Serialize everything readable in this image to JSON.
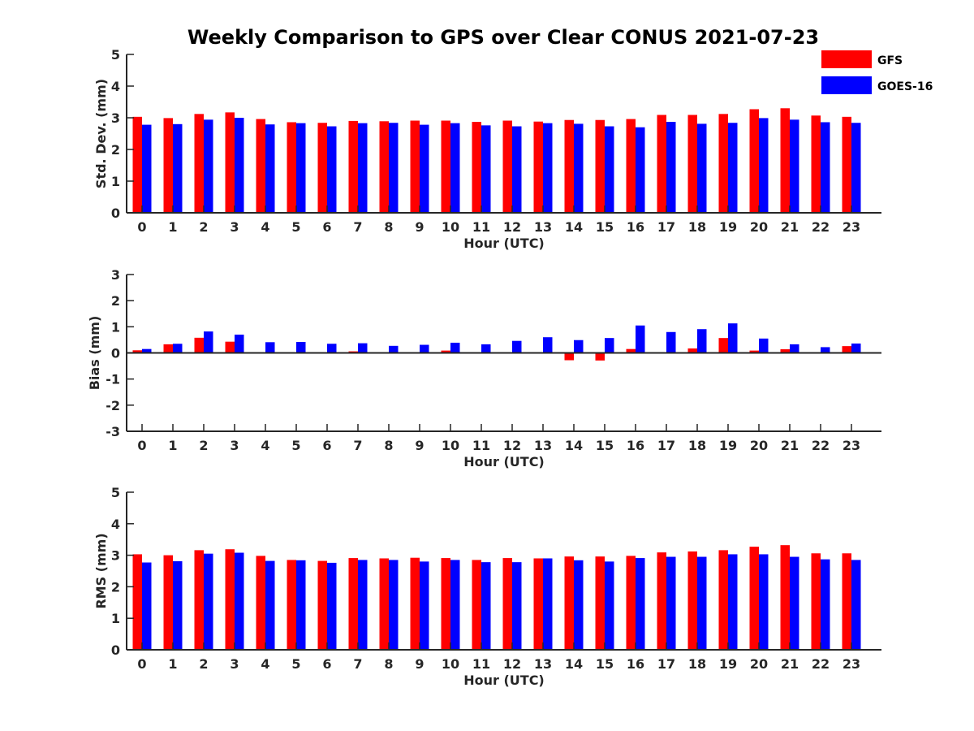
{
  "figure": {
    "title": "Weekly Comparison to GPS over Clear CONUS 2021-07-23"
  },
  "colors": {
    "GFS": "#ff0000",
    "GOES-16": "#0000ff",
    "axis": "#262626"
  },
  "chart_data": [
    {
      "type": "bar",
      "panel": "std-dev",
      "title": "Weekly Comparison to GPS over Clear CONUS 2021-07-23",
      "xlabel": "Hour (UTC)",
      "ylabel": "Std. Dev. (mm)",
      "ylim": [
        0,
        5
      ],
      "yticks": [
        0,
        1,
        2,
        3,
        4,
        5
      ],
      "categories": [
        "0",
        "1",
        "2",
        "3",
        "4",
        "5",
        "6",
        "7",
        "8",
        "9",
        "10",
        "11",
        "12",
        "13",
        "14",
        "15",
        "16",
        "17",
        "18",
        "19",
        "20",
        "21",
        "22",
        "23"
      ],
      "legend": "top-right",
      "series": [
        {
          "name": "GFS",
          "values": [
            3.03,
            2.99,
            3.12,
            3.17,
            2.96,
            2.86,
            2.84,
            2.9,
            2.89,
            2.91,
            2.91,
            2.87,
            2.91,
            2.88,
            2.93,
            2.93,
            2.96,
            3.09,
            3.09,
            3.12,
            3.27,
            3.3,
            3.07,
            3.03
          ]
        },
        {
          "name": "GOES-16",
          "values": [
            2.78,
            2.8,
            2.94,
            3.0,
            2.79,
            2.83,
            2.73,
            2.83,
            2.84,
            2.78,
            2.83,
            2.76,
            2.73,
            2.83,
            2.81,
            2.73,
            2.7,
            2.87,
            2.81,
            2.84,
            2.99,
            2.94,
            2.86,
            2.84
          ]
        }
      ]
    },
    {
      "type": "bar",
      "panel": "bias",
      "xlabel": "Hour (UTC)",
      "ylabel": "Bias (mm)",
      "ylim": [
        -3,
        3
      ],
      "yticks": [
        -3,
        -2,
        -1,
        0,
        1,
        2,
        3
      ],
      "categories": [
        "0",
        "1",
        "2",
        "3",
        "4",
        "5",
        "6",
        "7",
        "8",
        "9",
        "10",
        "11",
        "12",
        "13",
        "14",
        "15",
        "16",
        "17",
        "18",
        "19",
        "20",
        "21",
        "22",
        "23"
      ],
      "series": [
        {
          "name": "GFS",
          "values": [
            0.1,
            0.33,
            0.58,
            0.43,
            0.02,
            0.02,
            0.01,
            0.06,
            0.01,
            0.02,
            0.09,
            0.01,
            0.02,
            0.02,
            -0.28,
            -0.29,
            0.15,
            -0.03,
            0.17,
            0.57,
            0.09,
            0.14,
            0.03,
            0.26
          ]
        },
        {
          "name": "GOES-16",
          "values": [
            0.15,
            0.35,
            0.82,
            0.7,
            0.41,
            0.42,
            0.35,
            0.37,
            0.27,
            0.31,
            0.39,
            0.33,
            0.46,
            0.6,
            0.49,
            0.57,
            1.05,
            0.8,
            0.91,
            1.13,
            0.55,
            0.33,
            0.22,
            0.36
          ]
        }
      ]
    },
    {
      "type": "bar",
      "panel": "rms",
      "xlabel": "Hour (UTC)",
      "ylabel": "RMS (mm)",
      "ylim": [
        0,
        5
      ],
      "yticks": [
        0,
        1,
        2,
        3,
        4,
        5
      ],
      "categories": [
        "0",
        "1",
        "2",
        "3",
        "4",
        "5",
        "6",
        "7",
        "8",
        "9",
        "10",
        "11",
        "12",
        "13",
        "14",
        "15",
        "16",
        "17",
        "18",
        "19",
        "20",
        "21",
        "22",
        "23"
      ],
      "series": [
        {
          "name": "GFS",
          "values": [
            3.03,
            3.0,
            3.16,
            3.19,
            2.98,
            2.85,
            2.82,
            2.91,
            2.9,
            2.92,
            2.91,
            2.85,
            2.91,
            2.9,
            2.96,
            2.96,
            2.98,
            3.09,
            3.12,
            3.16,
            3.27,
            3.32,
            3.06,
            3.06
          ]
        },
        {
          "name": "GOES-16",
          "values": [
            2.77,
            2.81,
            3.05,
            3.08,
            2.82,
            2.84,
            2.76,
            2.85,
            2.85,
            2.8,
            2.85,
            2.78,
            2.78,
            2.9,
            2.84,
            2.8,
            2.91,
            2.95,
            2.95,
            3.03,
            3.03,
            2.95,
            2.87,
            2.85
          ]
        }
      ]
    }
  ]
}
